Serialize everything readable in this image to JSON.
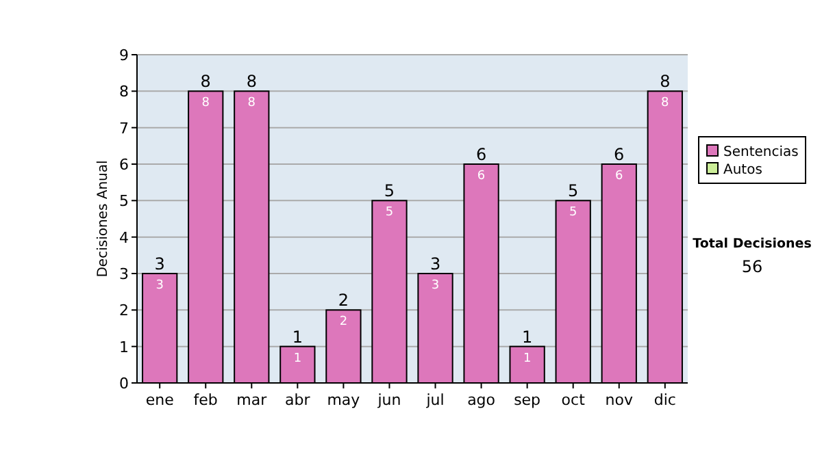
{
  "chart_data": {
    "type": "bar",
    "ylabel": "Decisiones Anual",
    "categories": [
      "ene",
      "feb",
      "mar",
      "abr",
      "may",
      "jun",
      "jul",
      "ago",
      "sep",
      "oct",
      "nov",
      "dic"
    ],
    "series": [
      {
        "name": "Sentencias",
        "color": "#dd77bb",
        "values": [
          3,
          8,
          8,
          1,
          2,
          5,
          3,
          6,
          1,
          5,
          6,
          8
        ],
        "value_labels": [
          "3",
          "8",
          "8",
          "1",
          "2",
          "5",
          "3",
          "6",
          "1",
          "5",
          "6",
          "8"
        ]
      },
      {
        "name": "Autos",
        "color": "#ccee99",
        "values": [
          0,
          0,
          0,
          0,
          0,
          0,
          0,
          0,
          0,
          0,
          0,
          0
        ]
      }
    ],
    "stacked": true,
    "totals": [
      "3",
      "8",
      "8",
      "1",
      "2",
      "5",
      "3",
      "6",
      "1",
      "5",
      "6",
      "8"
    ],
    "ylim": [
      0,
      9
    ],
    "yticks": [
      0,
      1,
      2,
      3,
      4,
      5,
      6,
      7,
      8,
      9
    ],
    "grid": "y",
    "legend": "right",
    "annotations": [
      "Total Decisiones",
      "56"
    ]
  }
}
